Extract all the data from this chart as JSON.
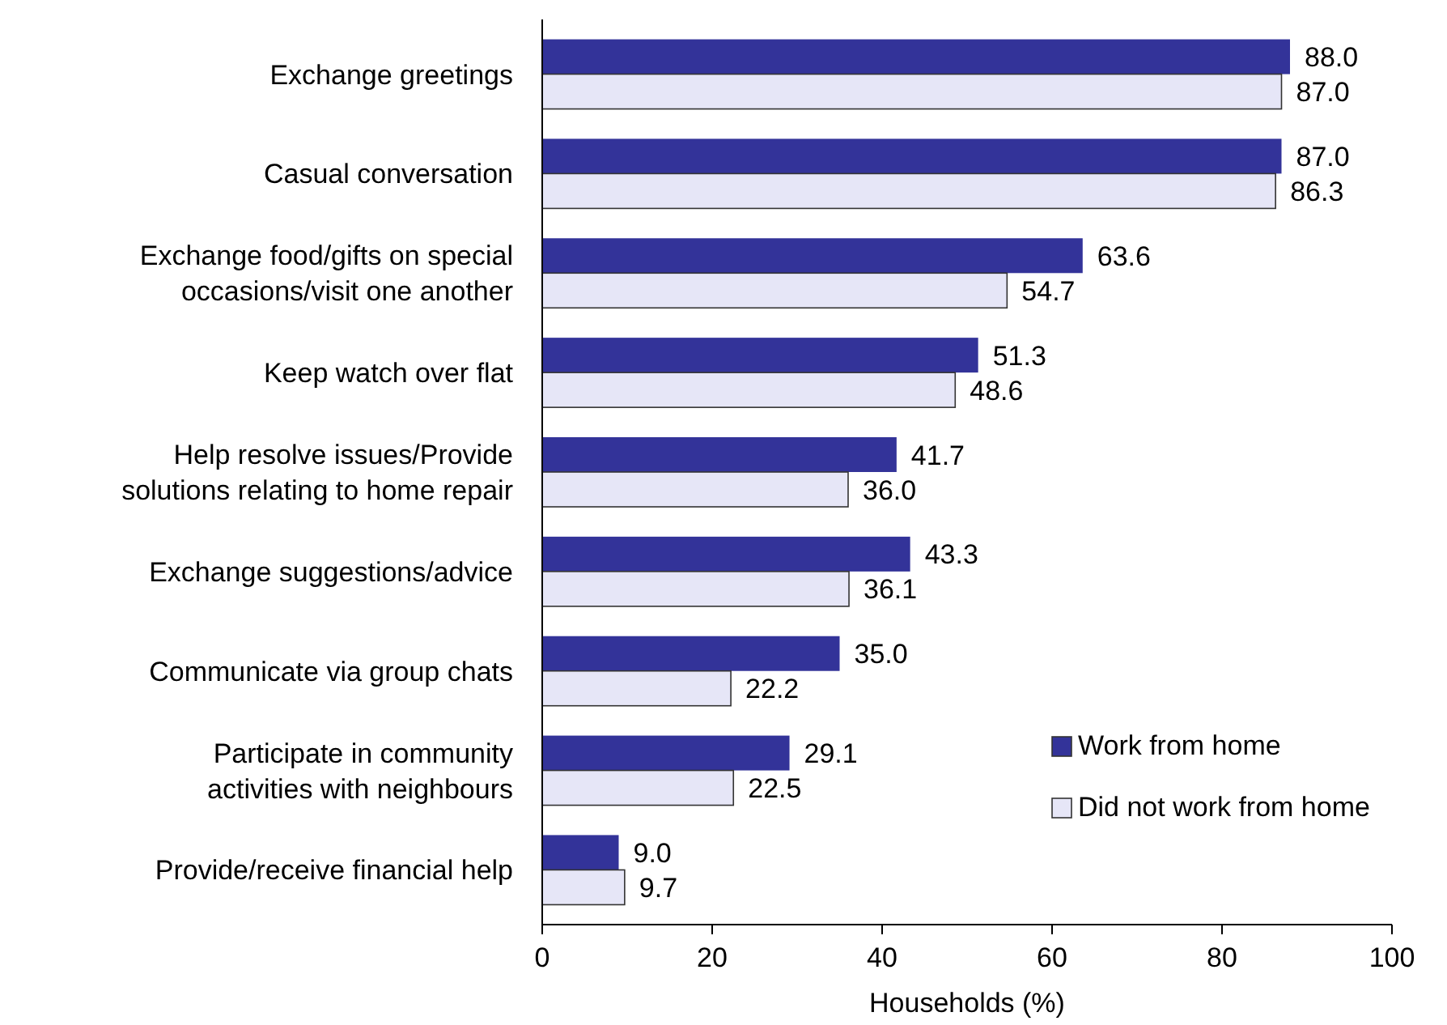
{
  "chart_data": {
    "type": "bar",
    "orientation": "horizontal",
    "xlabel": "Households (%)",
    "categories": [
      "Exchange greetings",
      "Casual conversation",
      "Exchange food/gifts on special occasions/visit one another",
      "Keep watch over flat",
      "Help resolve issues/Provide solutions relating to home repair",
      "Exchange suggestions/advice",
      "Communicate via group chats",
      "Participate in community activities with neighbours",
      "Provide/receive financial help"
    ],
    "series": [
      {
        "name": "Work from home",
        "color": "#333399",
        "values": [
          88.0,
          87.0,
          63.6,
          51.3,
          41.7,
          43.3,
          35.0,
          29.1,
          9.0
        ]
      },
      {
        "name": "Did not work from home",
        "color": "#e6e6f7",
        "values": [
          87.0,
          86.3,
          54.7,
          48.6,
          36.0,
          36.1,
          22.2,
          22.5,
          9.7
        ]
      }
    ],
    "value_labels": [
      [
        "88.0",
        "87.0",
        "63.6",
        "51.3",
        "41.7",
        "43.3",
        "35.0",
        "29.1",
        "9.0"
      ],
      [
        "87.0",
        "86.3",
        "54.7",
        "48.6",
        "36.0",
        "36.1",
        "22.2",
        "22.5",
        "9.7"
      ]
    ],
    "xlim": [
      0,
      100
    ],
    "xticks": [
      0,
      20,
      40,
      60,
      80,
      100
    ],
    "grid": false,
    "legend": "bottom right"
  }
}
